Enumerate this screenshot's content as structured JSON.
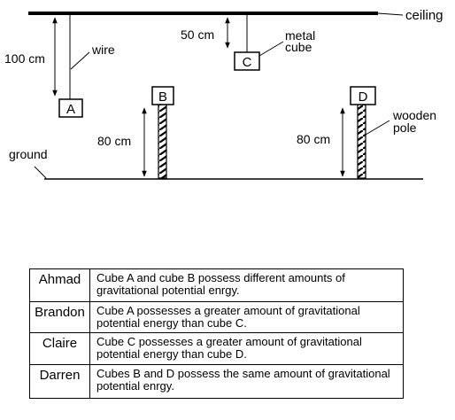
{
  "labels": {
    "ceiling": "ceiling",
    "ground": "ground",
    "wire": "wire",
    "metal_cube_line1": "metal",
    "metal_cube_line2": "cube",
    "wooden_pole_line1": "wooden",
    "wooden_pole_line2": "pole"
  },
  "cubes": {
    "a": "A",
    "b": "B",
    "c": "C",
    "d": "D"
  },
  "measurements": {
    "a_wire": "100 cm",
    "c_wire": "50 cm",
    "pole_b": "80 cm",
    "pole_d": "80 cm"
  },
  "statements": [
    {
      "name": "Ahmad",
      "text": "Cube A and cube B possess different amounts of gravitational potential enrgy."
    },
    {
      "name": "Brandon",
      "text": "Cube A possesses a greater amount of gravitational potential energy than cube C."
    },
    {
      "name": "Claire",
      "text": "Cube C possesses a greater amount of gravitational potential energy than cube D."
    },
    {
      "name": "Darren",
      "text": "Cubes B and D possess the same amount of gravitational potential enrgy."
    }
  ]
}
